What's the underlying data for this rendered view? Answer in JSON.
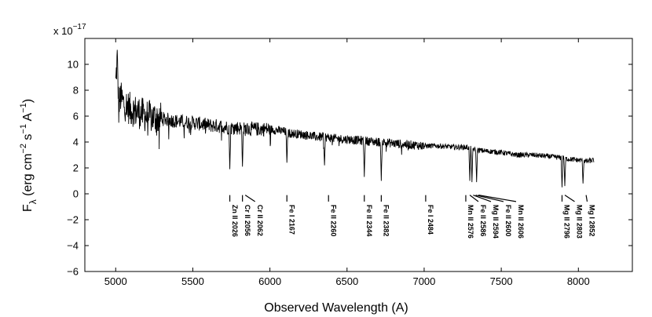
{
  "chart_data": {
    "type": "line",
    "title": "",
    "xlabel": "Observed Wavelength (A)",
    "ylabel": {
      "f": "F",
      "lambda": "λ",
      "open": " (erg cm",
      "exp1": "−2",
      "mid1": " s",
      "exp2": "−1",
      "mid2": " A",
      "exp3": "−1",
      "close": ")"
    },
    "y_multiplier": {
      "base": "x 10",
      "exponent": "−17"
    },
    "xlim": [
      4800,
      8350
    ],
    "ylim": [
      -6,
      12
    ],
    "x_ticks": [
      5000,
      5500,
      6000,
      6500,
      7000,
      7500,
      8000
    ],
    "x_tick_labels": [
      "5000",
      "5500",
      "6000",
      "6500",
      "7000",
      "7500",
      "8000"
    ],
    "y_ticks": [
      -6,
      -4,
      -2,
      0,
      2,
      4,
      6,
      8,
      10
    ],
    "y_tick_labels": [
      "−6",
      "−4",
      "−2",
      "0",
      "2",
      "4",
      "6",
      "8",
      "10"
    ],
    "grid": false,
    "colors": {
      "line": "#000000",
      "axes": "#000000",
      "background": "#ffffff"
    },
    "series": [
      {
        "name": "spectrum",
        "x": [
          5000,
          5010,
          5020,
          5030,
          5050,
          5070,
          5100,
          5150,
          5200,
          5250,
          5300,
          5400,
          5500,
          5600,
          5700,
          5740,
          5800,
          5822,
          5900,
          6000,
          6100,
          6110,
          6200,
          6260,
          6300,
          6354,
          6400,
          6500,
          6520,
          6600,
          6612,
          6700,
          6722,
          6800,
          6900,
          7000,
          7100,
          7200,
          7280,
          7296,
          7300,
          7310,
          7330,
          7340,
          7400,
          7500,
          7600,
          7700,
          7800,
          7880,
          7894,
          7900,
          7912,
          7930,
          8000,
          8030,
          8050,
          8100
        ],
        "y": [
          8.5,
          10.5,
          6.5,
          7.5,
          7.0,
          6.8,
          6.5,
          6.3,
          6.0,
          5.9,
          5.8,
          5.6,
          5.5,
          5.3,
          5.2,
          5.1,
          5.1,
          5.0,
          5.0,
          5.0,
          4.8,
          4.7,
          4.6,
          4.5,
          4.4,
          4.4,
          4.3,
          4.2,
          4.2,
          4.1,
          4.1,
          4.0,
          4.0,
          3.9,
          3.8,
          3.7,
          3.7,
          3.6,
          3.6,
          3.5,
          3.5,
          3.5,
          3.4,
          3.4,
          3.3,
          3.2,
          3.0,
          3.0,
          2.9,
          2.8,
          2.8,
          2.8,
          2.7,
          2.7,
          2.6,
          2.6,
          2.5,
          2.6
        ]
      }
    ],
    "absorption_features": [
      {
        "wavelength": 5740,
        "depth": 1.9
      },
      {
        "wavelength": 5822,
        "depth": 2.1
      },
      {
        "wavelength": 6110,
        "depth": 2.4
      },
      {
        "wavelength": 6354,
        "depth": 2.2
      },
      {
        "wavelength": 6612,
        "depth": 1.3
      },
      {
        "wavelength": 6722,
        "depth": 1.0
      },
      {
        "wavelength": 7296,
        "depth": 1.0
      },
      {
        "wavelength": 7310,
        "depth": 0.9
      },
      {
        "wavelength": 7340,
        "depth": 0.9
      },
      {
        "wavelength": 7894,
        "depth": 0.5
      },
      {
        "wavelength": 7912,
        "depth": 0.6
      },
      {
        "wavelength": 8030,
        "depth": 0.8
      }
    ],
    "line_ids": [
      {
        "label": "Zn II 2026",
        "wavelength": 5740
      },
      {
        "label": "Cr II 2056",
        "wavelength": 5822
      },
      {
        "label": "Cr II 2062",
        "wavelength": 5840
      },
      {
        "label": "Fe I 2167",
        "wavelength": 6110
      },
      {
        "label": "Fe II 2260",
        "wavelength": 6380
      },
      {
        "label": "Fe II 2344",
        "wavelength": 6612
      },
      {
        "label": "Fe II 2382",
        "wavelength": 6722
      },
      {
        "label": "Fe I 2484",
        "wavelength": 7010
      },
      {
        "label": "Mn II 2576",
        "wavelength": 7270
      },
      {
        "label": "Fe II 2586",
        "wavelength": 7296
      },
      {
        "label": "Mg II 2594",
        "wavelength": 7318
      },
      {
        "label": "Fe II 2600",
        "wavelength": 7334
      },
      {
        "label": "Mn II 2606",
        "wavelength": 7352
      },
      {
        "label": "Mg II 2796",
        "wavelength": 7894
      },
      {
        "label": "Mg II 2803",
        "wavelength": 7912
      },
      {
        "label": "Mg I 2852",
        "wavelength": 8050
      }
    ]
  }
}
